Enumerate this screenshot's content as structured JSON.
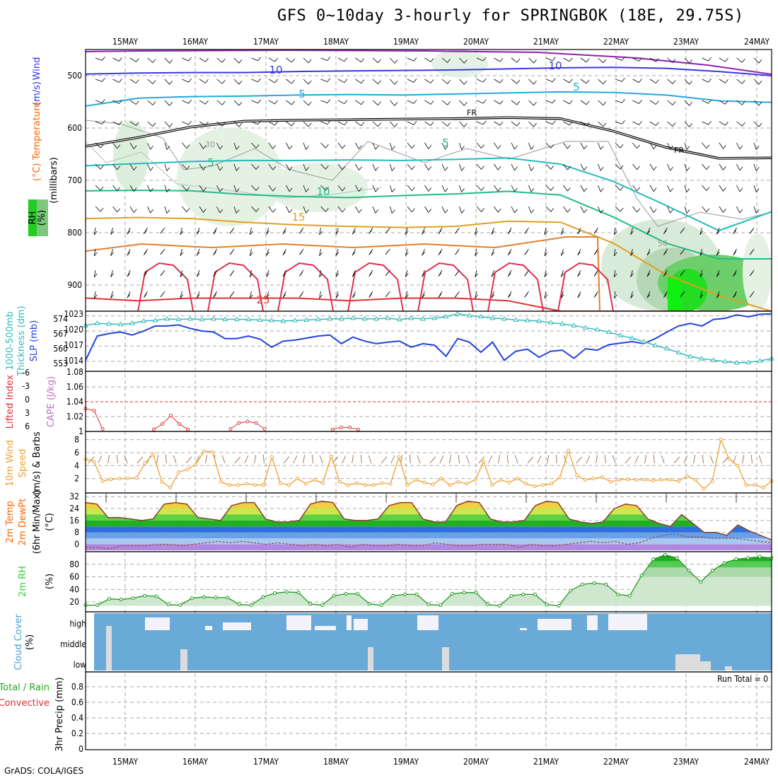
{
  "title": "GFS 0~10day 3-hourly for SPRINGBOK (18E, 29.75S)",
  "footer": "GrADS: COLA/IGES",
  "dates": [
    "15MAY",
    "16MAY",
    "17MAY",
    "18MAY",
    "19MAY",
    "20MAY",
    "21MAY",
    "22MAY",
    "23MAY",
    "24MAY"
  ],
  "colors": {
    "temp": "#ff6600",
    "wind": "#3333ff",
    "rh": "#33cc33",
    "thick": "#33bbbb",
    "slp": "#2244dd",
    "li": "#e03030",
    "cape": "#c070c0",
    "wind10": "#f0a030",
    "cloud": "#6aaad8",
    "precip_total": "#22aa22",
    "precip_conv": "#e03030"
  },
  "chart_data": [
    {
      "id": "upper_air",
      "type": "heatmap",
      "ylabel_parts": [
        "Wind",
        "(m/s)",
        "Temperature",
        "(°C)",
        "RH",
        "(%)",
        "(millibars)"
      ],
      "yticks": [
        "500",
        "600",
        "700",
        "800",
        "900"
      ],
      "ylim": [
        950,
        450
      ],
      "contour_labels": [
        "10",
        "10",
        "5",
        "5",
        "FR",
        "FR",
        "30",
        "5",
        "5",
        "10",
        "15",
        "50",
        "25"
      ],
      "isotherms": [
        {
          "label": "-10",
          "values": [
            497,
            495,
            494,
            494,
            492,
            491,
            490,
            489,
            487,
            485,
            484,
            486,
            492,
            500
          ]
        },
        {
          "label": "-5",
          "values": [
            558,
            543,
            540,
            539,
            537,
            536,
            537,
            535,
            533,
            531,
            532,
            537,
            548,
            551
          ]
        },
        {
          "label": "FR",
          "values": [
            635,
            618,
            598,
            587,
            585,
            584,
            583,
            582,
            580,
            582,
            606,
            637,
            658,
            657
          ]
        },
        {
          "label": "5",
          "values": [
            672,
            668,
            664,
            662,
            662,
            661,
            662,
            660,
            657,
            669,
            702,
            748,
            796,
            760
          ]
        },
        {
          "label": "10",
          "values": [
            720,
            719,
            720,
            727,
            731,
            733,
            729,
            726,
            721,
            728,
            770,
            820,
            850,
            850
          ]
        },
        {
          "label": "15",
          "values": [
            773,
            771,
            773,
            780,
            785,
            788,
            790,
            788,
            778,
            780,
            820,
            880,
            920,
            950
          ]
        },
        {
          "label": "25",
          "values": [
            925,
            930,
            925,
            925,
            925,
            930,
            925,
            925,
            930,
            950,
            950,
            950,
            950,
            950
          ]
        }
      ]
    },
    {
      "id": "slp_thickness",
      "type": "line",
      "ylabel_left": "Thickness (dm)",
      "ylabel_left2": "1000-500mb",
      "ylabel_right": "SLP (mb)",
      "yticks_left": [
        "574",
        "567",
        "560",
        "553"
      ],
      "yticks_right": [
        "1023",
        "1020",
        "1017",
        "1014"
      ],
      "series": [
        {
          "name": "SLP (mb)",
          "values": [
            1014.2,
            1019,
            1019.5,
            1019.8,
            1019.2,
            1020,
            1021,
            1021,
            1021.2,
            1020.5,
            1020,
            1019.8,
            1018.5,
            1018.5,
            1019,
            1018.4,
            1016.8,
            1018,
            1018.2,
            1018.6,
            1019,
            1019.2,
            1017.5,
            1018.8,
            1018,
            1017.5,
            1017.8,
            1018,
            1016.8,
            1017.5,
            1017.2,
            1015,
            1018.5,
            1017.8,
            1015.8,
            1017.8,
            1014.2,
            1016,
            1016.4,
            1014.8,
            1016,
            1016.2,
            1014.6,
            1016.5,
            1016.2,
            1017.3,
            1017.6,
            1017.9,
            1017.5,
            1018.5,
            1019.8,
            1021,
            1021.5,
            1021,
            1022.3,
            1022.5,
            1023.2,
            1022.8,
            1023.3,
            1023.4
          ]
        },
        {
          "name": "Thickness (dm)",
          "values": [
            570.5,
            571.5,
            571.2,
            571,
            571.5,
            572.5,
            572.8,
            573.5,
            573.2,
            573.5,
            573.2,
            573.5,
            573.3,
            573.3,
            573.2,
            573,
            572.8,
            572.5,
            572.8,
            573,
            573.2,
            573.5,
            573.5,
            573.8,
            573.5,
            573.5,
            573.8,
            573.2,
            573.8,
            573.5,
            573.8,
            574.5,
            575.8,
            575,
            574.5,
            573.8,
            573.5,
            573,
            572.8,
            572.5,
            571.8,
            571.2,
            570.5,
            569.5,
            568.6,
            567.5,
            566,
            564.8,
            563.2,
            561.5,
            560,
            558.2,
            556.5,
            555.5,
            554.8,
            554.2,
            553.6,
            553.8,
            554.5,
            555.5
          ]
        }
      ]
    },
    {
      "id": "li_cape",
      "type": "line",
      "ylabel_left": "Lifted Index",
      "ylabel_right": "CAPE (J/kg)",
      "yticks_left": [
        "-6",
        "-3",
        "0",
        "3",
        "6"
      ],
      "yticks_right": [
        "1.08",
        "1.06",
        "1.04",
        "1.02",
        "1"
      ],
      "series": [
        {
          "name": "Lifted Index",
          "segments": [
            [
              0,
              1.4
            ],
            [
              1,
              1.8
            ],
            [
              2,
              5.5
            ]
          ],
          "extra": [
            [
              [
                8,
                5.6
              ],
              [
                9,
                4.5
              ],
              [
                10,
                2.8
              ],
              [
                11,
                4.5
              ],
              [
                12,
                5.6
              ]
            ],
            [
              [
                17,
                5.5
              ],
              [
                18,
                4.3
              ],
              [
                19,
                4.0
              ],
              [
                20,
                4.3
              ],
              [
                21,
                5.5
              ]
            ],
            [
              [
                29,
                5.6
              ],
              [
                30,
                5.2
              ],
              [
                31,
                5.2
              ],
              [
                32,
                5.6
              ]
            ]
          ]
        }
      ]
    },
    {
      "id": "wind10",
      "type": "line",
      "ylabel": "10m Wind Speed (m/s) & Barbs",
      "yticks": [
        "8",
        "6",
        "4",
        "2"
      ],
      "ylim": [
        0,
        8.5
      ],
      "values": [
        5.0,
        4.6,
        1.6,
        1.9,
        2.0,
        2.0,
        2.1,
        4.4,
        5.7,
        1.5,
        0.6,
        3.0,
        3.4,
        4.2,
        6.2,
        6.1,
        1.5,
        1.0,
        1.0,
        1.2,
        1.0,
        1.0,
        5.3,
        1.3,
        1.0,
        2.0,
        1.2,
        1.8,
        1.3,
        5.4,
        1.5,
        1.0,
        1.3,
        1.0,
        1.0,
        1.3,
        1.2,
        5.3,
        1.0,
        1.8,
        1.4,
        1.1,
        2.0,
        1.0,
        1.5,
        1.2,
        1.8,
        4.6,
        1.0,
        1.8,
        1.4,
        2.0,
        1.2,
        0.8,
        1.0,
        1.2,
        2.2,
        6.3,
        2.5,
        1.8,
        2.0,
        2.2,
        1.5,
        1.8,
        1.9,
        1.8,
        1.8,
        1.7,
        1.8,
        1.8,
        1.6,
        2.4,
        1.8,
        0.4,
        1.6,
        8.0,
        5.0,
        4.0,
        1.0,
        1.0,
        0.6,
        1.6
      ]
    },
    {
      "id": "temp2m",
      "type": "area",
      "ylabel": "2m Temp 2m DewPt (6hr Min/Max) (°C)",
      "yticks": [
        "32",
        "24",
        "16",
        "8",
        "0"
      ],
      "ylim": [
        -4,
        34
      ],
      "temp": [
        28,
        27,
        18,
        18,
        17,
        16,
        17,
        27,
        28,
        27,
        18,
        17,
        16,
        26,
        28,
        28,
        17,
        15,
        15,
        16,
        27,
        29,
        28,
        17,
        16,
        16,
        17,
        26,
        28,
        28,
        17,
        15,
        15,
        26,
        29,
        28,
        17,
        15,
        15,
        16,
        26,
        29,
        28,
        17,
        15,
        14,
        15,
        24,
        27,
        26,
        17,
        14,
        12,
        20,
        14,
        8,
        8,
        6,
        13,
        9,
        6,
        3
      ],
      "dewpt": [
        -2,
        -2,
        -3,
        -1,
        -1,
        -1,
        0,
        0,
        -1,
        0,
        1,
        2,
        1,
        2,
        1,
        0,
        1,
        0,
        -1,
        0,
        -1,
        0,
        -2,
        0,
        -1,
        -1,
        0,
        -1,
        -1,
        1,
        0,
        -1,
        -1,
        0,
        0,
        0,
        -2,
        0,
        -1,
        -1,
        0,
        1,
        2,
        1,
        2,
        0,
        1,
        4,
        6,
        7,
        5,
        5,
        4,
        4,
        4,
        3,
        2,
        1
      ]
    },
    {
      "id": "rh2m",
      "type": "area",
      "ylabel": "2m RH (%)",
      "yticks": [
        "80",
        "60",
        "40",
        "20"
      ],
      "ylim": [
        10,
        100
      ],
      "values": [
        15,
        15,
        25,
        24,
        26,
        30,
        29,
        16,
        15,
        26,
        28,
        27,
        27,
        16,
        15,
        28,
        34,
        36,
        35,
        17,
        15,
        30,
        33,
        33,
        17,
        15,
        30,
        32,
        32,
        16,
        15,
        33,
        35,
        35,
        16,
        14,
        30,
        32,
        32,
        16,
        14,
        38,
        48,
        50,
        48,
        32,
        30,
        62,
        88,
        95,
        90,
        70,
        52,
        70,
        82,
        88,
        90,
        92,
        90
      ]
    },
    {
      "id": "cloud",
      "type": "heatmap",
      "ylabel": "Cloud Cover (%)",
      "yticks": [
        "high",
        "middle",
        "low"
      ]
    },
    {
      "id": "precip",
      "type": "bar",
      "ylabel": "3hr Precip (mm)",
      "legend_total": "Total / Rain",
      "legend_conv": "Convective",
      "annotation": "Run Total = 0",
      "yticks": [
        "0.8",
        "0.6",
        "0.4",
        "0.2",
        "0"
      ],
      "ylim": [
        0,
        0.9
      ],
      "values": []
    }
  ]
}
